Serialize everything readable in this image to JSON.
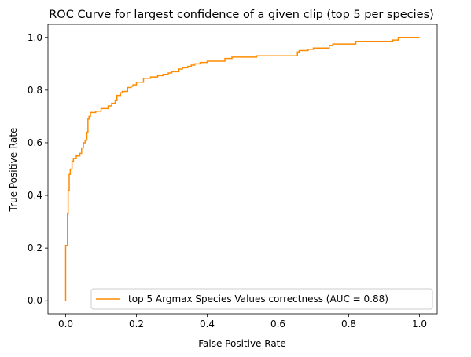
{
  "chart_data": {
    "type": "line",
    "title": "ROC Curve for largest confidence of a given clip (top 5 per species)",
    "xlabel": "False Positive Rate",
    "ylabel": "True Positive Rate",
    "xlim": [
      -0.05,
      1.05
    ],
    "ylim": [
      -0.05,
      1.05
    ],
    "x_ticks": [
      "0.0",
      "0.2",
      "0.4",
      "0.6",
      "0.8",
      "1.0"
    ],
    "y_ticks": [
      "0.0",
      "0.2",
      "0.4",
      "0.6",
      "0.8",
      "1.0"
    ],
    "grid": false,
    "legend_position": "lower right",
    "series": [
      {
        "name": "top 5 Argmax Species Values correctness (AUC = 0.88)",
        "color": "#ff8c00",
        "x": [
          0.0,
          0.0,
          0.005,
          0.005,
          0.007,
          0.007,
          0.01,
          0.01,
          0.013,
          0.013,
          0.018,
          0.018,
          0.022,
          0.022,
          0.03,
          0.03,
          0.04,
          0.04,
          0.045,
          0.045,
          0.05,
          0.05,
          0.055,
          0.055,
          0.06,
          0.06,
          0.063,
          0.063,
          0.066,
          0.066,
          0.07,
          0.07,
          0.085,
          0.085,
          0.1,
          0.1,
          0.12,
          0.12,
          0.13,
          0.13,
          0.14,
          0.14,
          0.145,
          0.145,
          0.155,
          0.155,
          0.16,
          0.16,
          0.175,
          0.175,
          0.185,
          0.185,
          0.19,
          0.19,
          0.2,
          0.2,
          0.22,
          0.22,
          0.24,
          0.24,
          0.26,
          0.26,
          0.275,
          0.275,
          0.29,
          0.29,
          0.3,
          0.3,
          0.32,
          0.32,
          0.33,
          0.33,
          0.345,
          0.345,
          0.355,
          0.355,
          0.365,
          0.365,
          0.38,
          0.38,
          0.4,
          0.4,
          0.45,
          0.45,
          0.47,
          0.47,
          0.54,
          0.54,
          0.655,
          0.655,
          0.66,
          0.66,
          0.685,
          0.685,
          0.7,
          0.7,
          0.745,
          0.745,
          0.755,
          0.755,
          0.82,
          0.82,
          0.925,
          0.925,
          0.94,
          0.94,
          1.0
        ],
        "y": [
          0.0,
          0.21,
          0.21,
          0.33,
          0.33,
          0.42,
          0.42,
          0.48,
          0.48,
          0.5,
          0.5,
          0.53,
          0.53,
          0.54,
          0.54,
          0.55,
          0.55,
          0.56,
          0.56,
          0.58,
          0.58,
          0.6,
          0.6,
          0.61,
          0.61,
          0.64,
          0.64,
          0.69,
          0.69,
          0.7,
          0.7,
          0.715,
          0.715,
          0.72,
          0.72,
          0.73,
          0.73,
          0.74,
          0.74,
          0.75,
          0.75,
          0.76,
          0.76,
          0.78,
          0.78,
          0.79,
          0.79,
          0.795,
          0.795,
          0.81,
          0.81,
          0.815,
          0.815,
          0.82,
          0.82,
          0.83,
          0.83,
          0.845,
          0.845,
          0.85,
          0.85,
          0.855,
          0.855,
          0.86,
          0.86,
          0.865,
          0.865,
          0.87,
          0.87,
          0.88,
          0.88,
          0.885,
          0.885,
          0.89,
          0.89,
          0.895,
          0.895,
          0.9,
          0.9,
          0.905,
          0.905,
          0.91,
          0.91,
          0.92,
          0.92,
          0.925,
          0.925,
          0.93,
          0.93,
          0.945,
          0.945,
          0.95,
          0.95,
          0.955,
          0.955,
          0.96,
          0.96,
          0.97,
          0.97,
          0.975,
          0.975,
          0.985,
          0.985,
          0.99,
          0.99,
          1.0,
          1.0
        ]
      }
    ]
  }
}
